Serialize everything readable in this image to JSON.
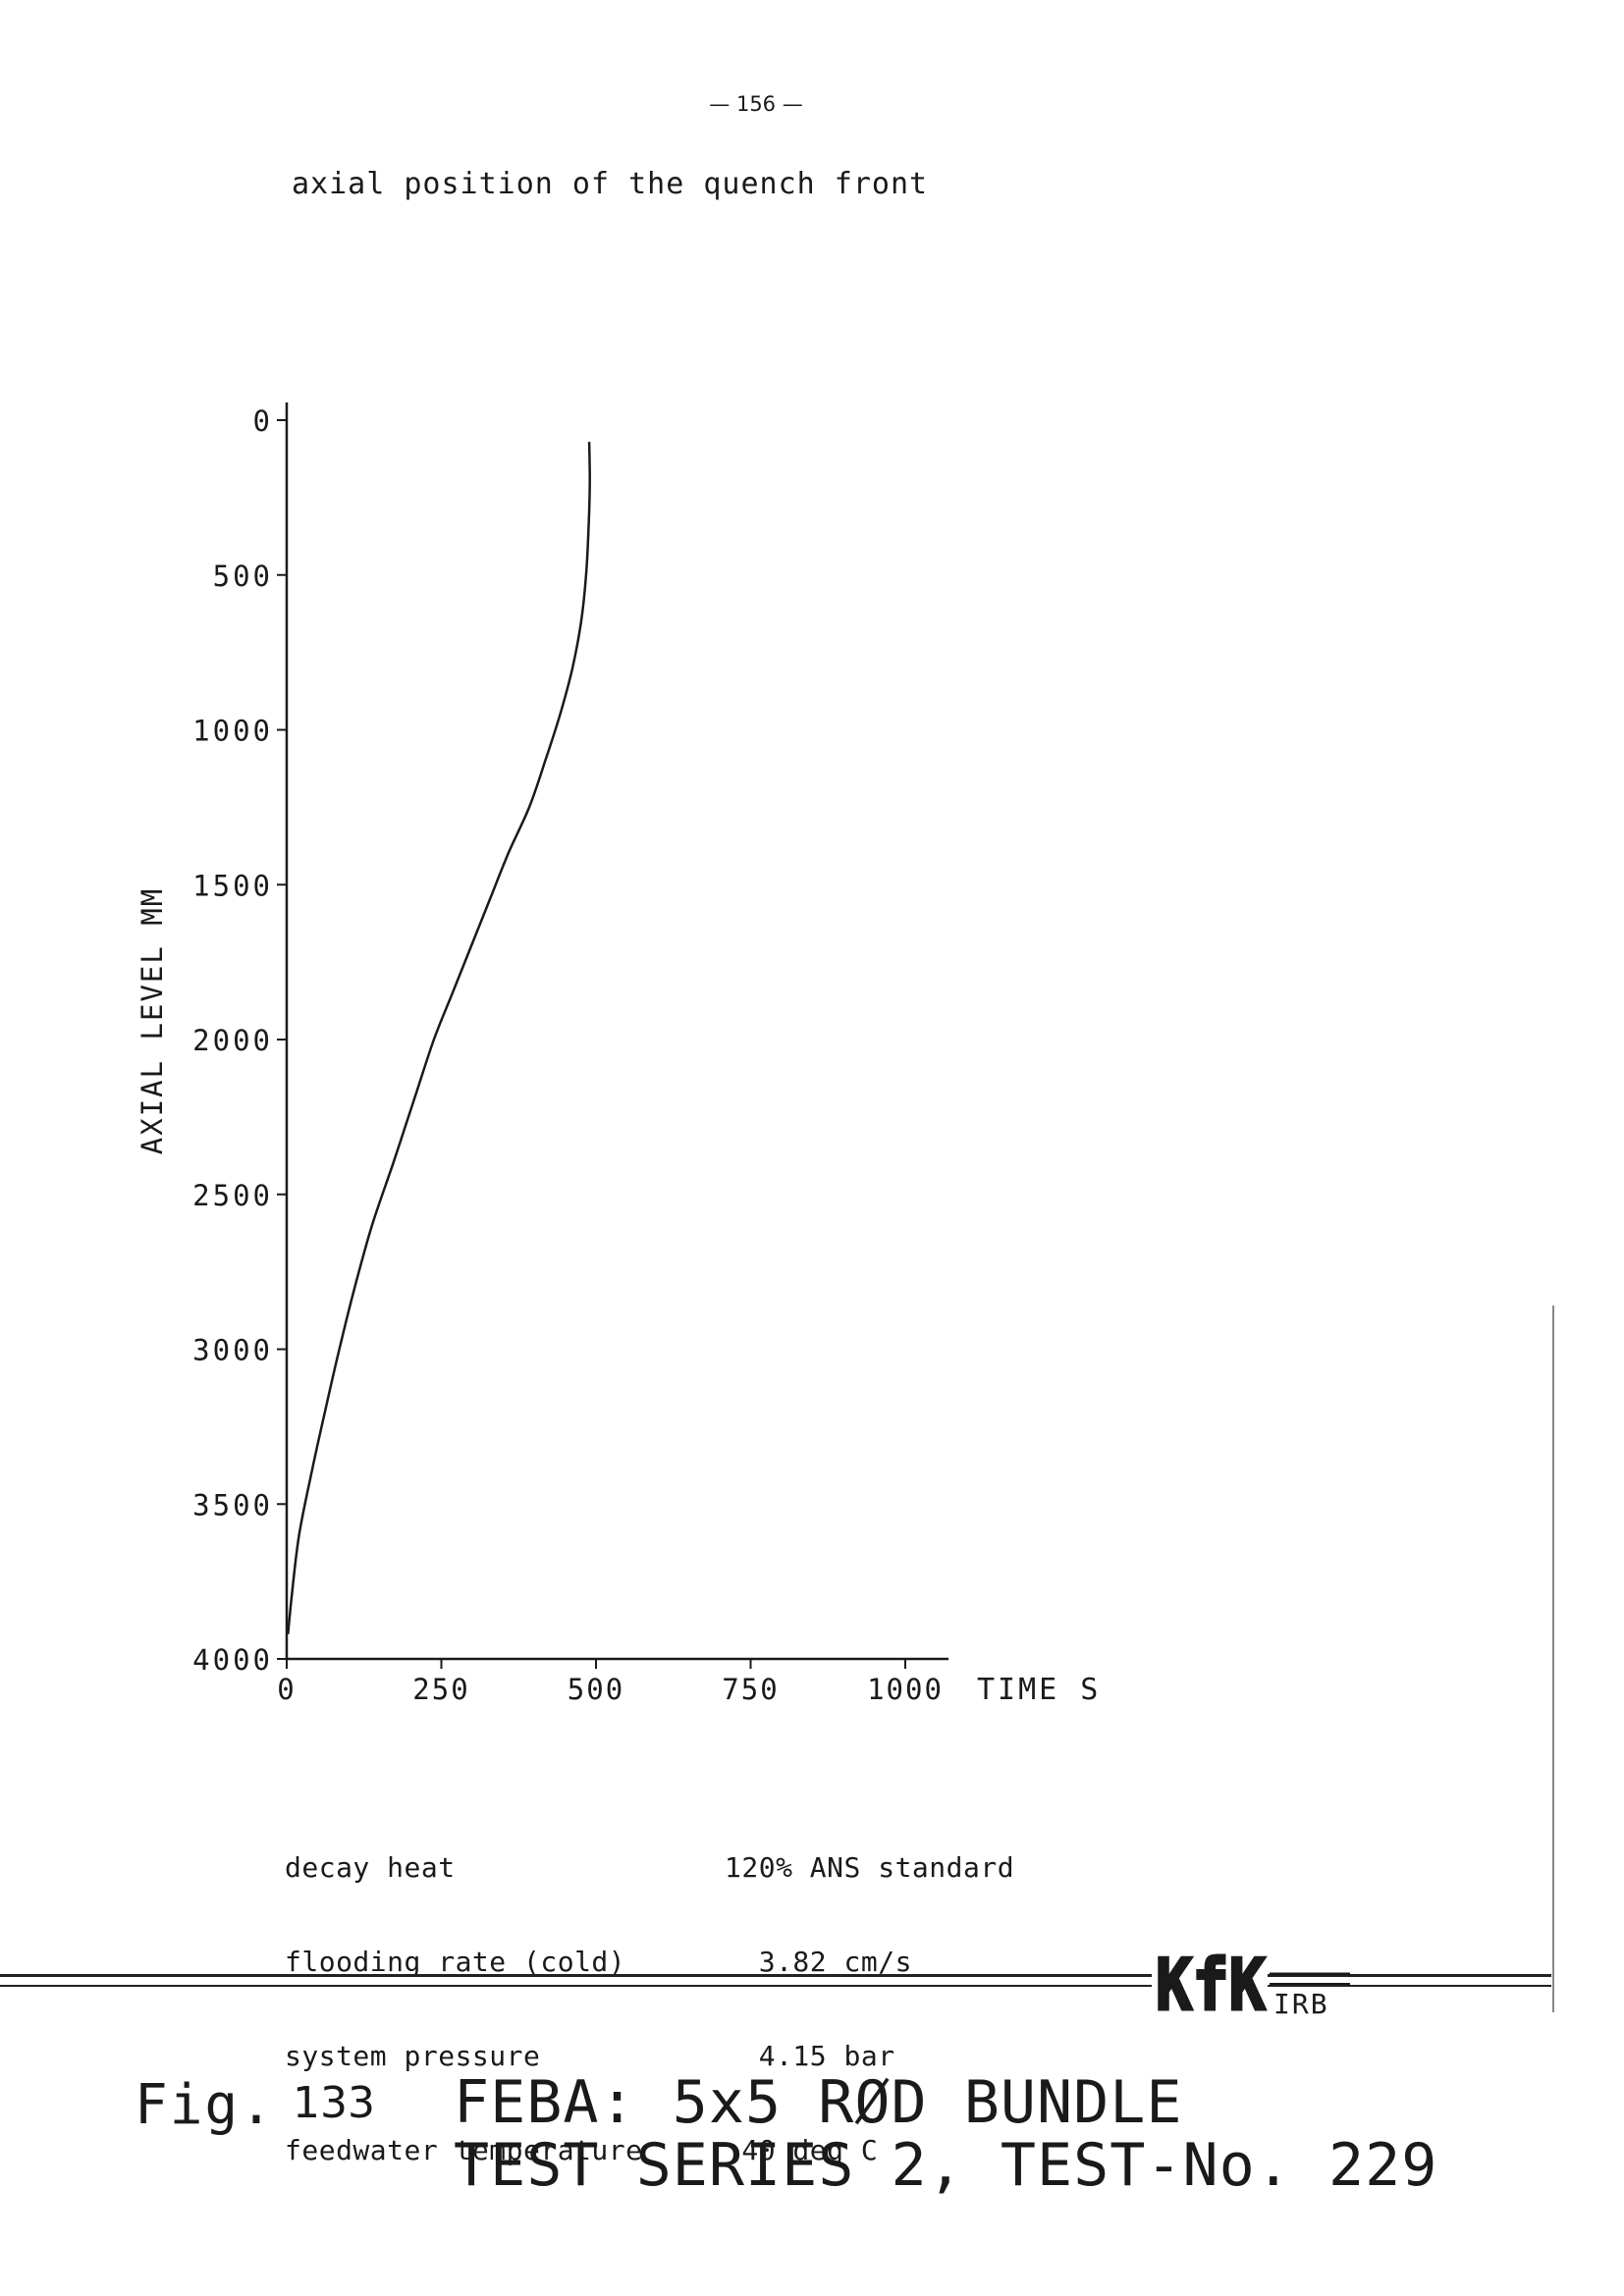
{
  "page": {
    "page_number": "— 156 —",
    "subtitle": "axial position of the quench front"
  },
  "chart_data": {
    "type": "line",
    "title": "axial position of the quench front",
    "xlabel": "TIME S",
    "ylabel": "AXIAL LEVEL MM",
    "xlim": [
      0,
      1070
    ],
    "ylim": [
      0,
      4000
    ],
    "y_inverted": true,
    "x_ticks": [
      0,
      250,
      500,
      750,
      1000
    ],
    "x_tick_labels": [
      "0",
      "250",
      "500",
      "750",
      "1000"
    ],
    "y_ticks": [
      0,
      500,
      1000,
      1500,
      2000,
      2500,
      3000,
      3500,
      4000
    ],
    "y_tick_labels": [
      "0",
      "500",
      "1000",
      "1500",
      "2000",
      "2500",
      "3000",
      "3500",
      "4000"
    ],
    "grid": false,
    "series": [
      {
        "color": "#1a1a1a",
        "x": [
          489,
          490,
          488,
          484,
          476,
          462,
          442,
          418,
          392,
          358,
          328,
          298,
          268,
          238,
          205,
          172,
          138,
          110,
          85,
          62,
          40,
          20,
          8,
          2
        ],
        "y": [
          70,
          200,
          350,
          500,
          650,
          800,
          950,
          1100,
          1250,
          1400,
          1550,
          1700,
          1850,
          2000,
          2200,
          2400,
          2600,
          2800,
          3000,
          3200,
          3400,
          3600,
          3800,
          3920
        ]
      }
    ]
  },
  "parameters": {
    "labels": [
      "decay heat",
      "flooding rate (cold)",
      "system pressure",
      "feedwater temperature"
    ],
    "values": [
      "120% ANS standard",
      "  3.82 cm/s",
      "  4.15 bar",
      " 40 deg C"
    ]
  },
  "logo": {
    "text": "KfK",
    "suffix": "IRB"
  },
  "figure": {
    "label": "Fig.",
    "number": "133",
    "title_line1": "FEBA: 5x5 RØD BUNDLE",
    "title_line2": "TEST SERIES 2, TEST-No. 229"
  }
}
